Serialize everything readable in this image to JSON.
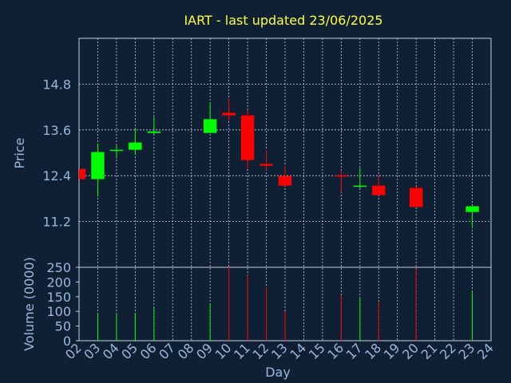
{
  "chart_data": {
    "type": "candlestick",
    "title": "IART - last updated 23/06/2025",
    "xlabel": "Day",
    "ylabel": "Price",
    "y2label": "Volume (0000)",
    "categories": [
      "02",
      "03",
      "04",
      "05",
      "06",
      "07",
      "08",
      "09",
      "10",
      "11",
      "12",
      "13",
      "14",
      "15",
      "16",
      "17",
      "18",
      "19",
      "20",
      "21",
      "22",
      "23",
      "24"
    ],
    "open": [
      12.58,
      12.31,
      13.06,
      13.08,
      13.52,
      null,
      null,
      13.52,
      14.05,
      13.98,
      12.71,
      12.39,
      null,
      null,
      12.41,
      12.12,
      12.14,
      null,
      12.08,
      null,
      null,
      11.45,
      null
    ],
    "high": [
      12.58,
      13.23,
      13.19,
      13.63,
      13.94,
      null,
      null,
      14.32,
      14.42,
      14.11,
      13.08,
      12.66,
      null,
      null,
      12.54,
      12.6,
      12.39,
      null,
      12.12,
      null,
      null,
      11.6,
      null
    ],
    "low": [
      12.31,
      11.85,
      12.85,
      12.94,
      13.48,
      null,
      null,
      13.52,
      13.84,
      12.58,
      12.54,
      12.14,
      null,
      null,
      11.97,
      12.06,
      11.89,
      null,
      11.58,
      null,
      null,
      11.03,
      null
    ],
    "close": [
      12.31,
      13.02,
      13.08,
      13.27,
      13.56,
      null,
      null,
      13.88,
      13.98,
      12.81,
      12.66,
      12.14,
      null,
      null,
      12.39,
      12.14,
      11.89,
      null,
      11.58,
      null,
      null,
      11.6,
      null
    ],
    "volume": [
      null,
      92,
      92,
      92,
      114,
      null,
      null,
      125,
      250,
      223,
      182,
      100,
      null,
      null,
      155,
      144,
      133,
      null,
      245,
      null,
      null,
      168,
      null
    ],
    "up_color": "#00ff00",
    "down_color": "#ff0000",
    "ylim": [
      10,
      16
    ],
    "yticks": [
      11.2,
      12.4,
      13.6,
      14.8
    ],
    "y2lim": [
      0,
      250
    ],
    "y2ticks": [
      0,
      50,
      100,
      150,
      200,
      250
    ],
    "grid": true
  }
}
